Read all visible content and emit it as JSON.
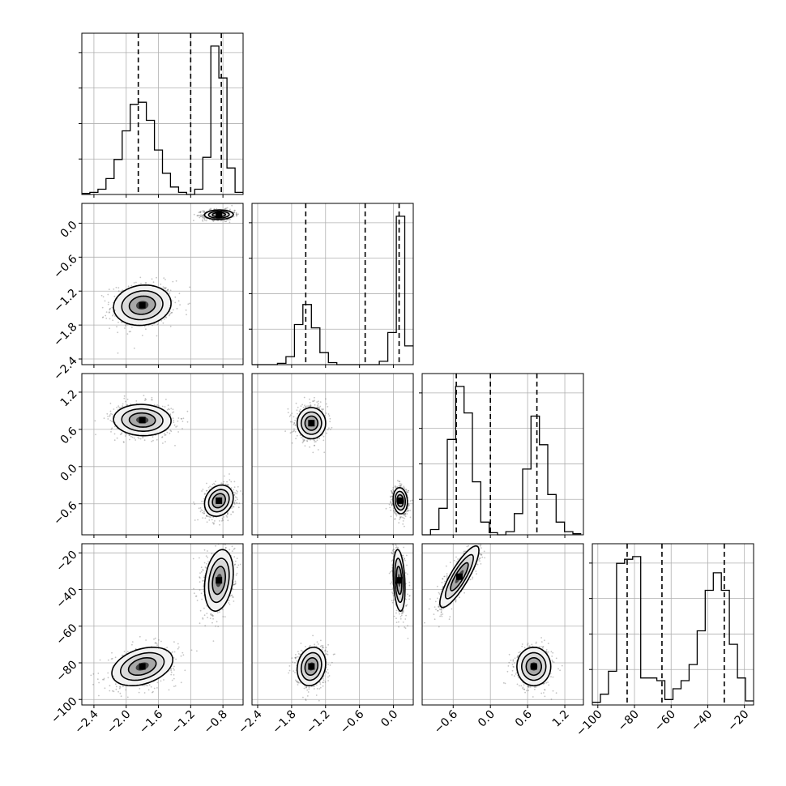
{
  "chart_data": {
    "type": "corner",
    "title": "",
    "grid": true,
    "parameters": [
      {
        "label": "",
        "range": [
          -2.55,
          -0.55
        ],
        "ticks": [
          -2.4,
          -2.0,
          -1.6,
          -1.2,
          -0.8
        ],
        "tick_labels": [
          "−2.4",
          "−2.0",
          "−1.6",
          "−1.2",
          "−0.8"
        ],
        "quantiles": [
          -1.85,
          -1.2,
          -0.82
        ]
      },
      {
        "label": "",
        "range": [
          -2.5,
          0.35
        ],
        "ticks": [
          -2.4,
          -1.8,
          -1.2,
          -0.6,
          0.0
        ],
        "tick_labels": [
          "−2.4",
          "−1.8",
          "−1.2",
          "−0.6",
          "0.0"
        ],
        "quantiles": [
          -1.55,
          -0.5,
          0.1
        ]
      },
      {
        "label": "",
        "range": [
          -1.1,
          1.5
        ],
        "ticks": [
          -0.6,
          0.0,
          0.6,
          1.2
        ],
        "tick_labels": [
          "−0.6",
          "0.0",
          "0.6",
          "1.2"
        ],
        "quantiles": [
          -0.55,
          0.0,
          0.75
        ]
      },
      {
        "label": "",
        "range": [
          -103,
          -15
        ],
        "ticks": [
          -100,
          -80,
          -60,
          -40,
          -20
        ],
        "tick_labels": [
          "−100",
          "−80",
          "−60",
          "−40",
          "−20"
        ],
        "quantiles": [
          -84,
          -65,
          -31
        ]
      }
    ],
    "histograms": [
      {
        "bin_edges": [
          -2.55,
          -2.45,
          -2.35,
          -2.25,
          -2.15,
          -2.05,
          -1.95,
          -1.85,
          -1.75,
          -1.65,
          -1.55,
          -1.45,
          -1.35,
          -1.25,
          -1.15,
          -1.05,
          -0.95,
          -0.85,
          -0.75,
          -0.65,
          -0.55
        ],
        "counts": [
          1,
          2,
          5,
          15,
          33,
          60,
          85,
          87,
          70,
          42,
          20,
          7,
          2,
          0,
          5,
          35,
          140,
          110,
          25,
          2
        ]
      },
      {
        "bin_edges": [
          -2.5,
          -2.35,
          -2.2,
          -2.05,
          -1.9,
          -1.75,
          -1.6,
          -1.45,
          -1.3,
          -1.15,
          -1.0,
          -0.85,
          -0.7,
          -0.55,
          -0.4,
          -0.25,
          -0.1,
          0.05,
          0.2,
          0.35
        ],
        "counts": [
          0,
          0,
          0,
          2,
          12,
          60,
          90,
          55,
          18,
          3,
          0,
          0,
          0,
          0,
          0,
          5,
          48,
          222,
          28
        ]
      },
      {
        "bin_edges": [
          -1.1,
          -0.965,
          -0.83,
          -0.695,
          -0.56,
          -0.425,
          -0.29,
          -0.155,
          -0.02,
          0.115,
          0.25,
          0.385,
          0.52,
          0.655,
          0.79,
          0.925,
          1.06,
          1.195,
          1.33,
          1.465
        ],
        "counts": [
          0,
          5,
          25,
          90,
          140,
          115,
          50,
          12,
          2,
          0,
          3,
          20,
          62,
          112,
          85,
          38,
          12,
          3,
          1
        ]
      },
      {
        "bin_edges": [
          -103,
          -98.6,
          -94.2,
          -89.8,
          -85.4,
          -81,
          -76.6,
          -72.2,
          -67.8,
          -63.4,
          -59,
          -54.6,
          -50.2,
          -45.8,
          -41.4,
          -37,
          -32.6,
          -28.2,
          -23.8,
          -19.4,
          -15
        ],
        "counts": [
          2,
          8,
          25,
          105,
          108,
          110,
          20,
          20,
          18,
          4,
          12,
          18,
          30,
          55,
          85,
          98,
          85,
          45,
          20,
          3
        ]
      }
    ],
    "pairs": [
      {
        "x": 0,
        "y": 1,
        "modes": [
          {
            "center": [
              -1.8,
              -1.45
            ],
            "spread": [
              0.17,
              0.17
            ],
            "rho": 0.1
          },
          {
            "center": [
              -0.85,
              0.15
            ],
            "spread": [
              0.085,
              0.04
            ],
            "rho": 0.05
          }
        ]
      },
      {
        "x": 0,
        "y": 2,
        "modes": [
          {
            "center": [
              -1.8,
              0.75
            ],
            "spread": [
              0.17,
              0.12
            ],
            "rho": -0.05
          },
          {
            "center": [
              -0.85,
              -0.55
            ],
            "spread": [
              0.085,
              0.12
            ],
            "rho": 0.2
          }
        ]
      },
      {
        "x": 1,
        "y": 2,
        "modes": [
          {
            "center": [
              -1.45,
              0.7
            ],
            "spread": [
              0.12,
              0.12
            ],
            "rho": 0.0
          },
          {
            "center": [
              0.12,
              -0.55
            ],
            "spread": [
              0.06,
              0.1
            ],
            "rho": -0.1
          }
        ]
      },
      {
        "x": 0,
        "y": 3,
        "modes": [
          {
            "center": [
              -1.8,
              -82
            ],
            "spread": [
              0.18,
              5.0
            ],
            "rho": 0.35
          },
          {
            "center": [
              -0.85,
              -35
            ],
            "spread": [
              0.085,
              8.0
            ],
            "rho": 0.25
          }
        ]
      },
      {
        "x": 1,
        "y": 3,
        "modes": [
          {
            "center": [
              -1.45,
              -82
            ],
            "spread": [
              0.12,
              5.0
            ],
            "rho": 0.15
          },
          {
            "center": [
              0.1,
              -35
            ],
            "spread": [
              0.05,
              8.0
            ],
            "rho": -0.25
          }
        ]
      },
      {
        "x": 2,
        "y": 3,
        "modes": [
          {
            "center": [
              -0.5,
              -33
            ],
            "spread": [
              0.15,
              8.0
            ],
            "rho": 0.85
          },
          {
            "center": [
              0.7,
              -82
            ],
            "spread": [
              0.13,
              5.0
            ],
            "rho": 0.0
          }
        ]
      }
    ]
  }
}
